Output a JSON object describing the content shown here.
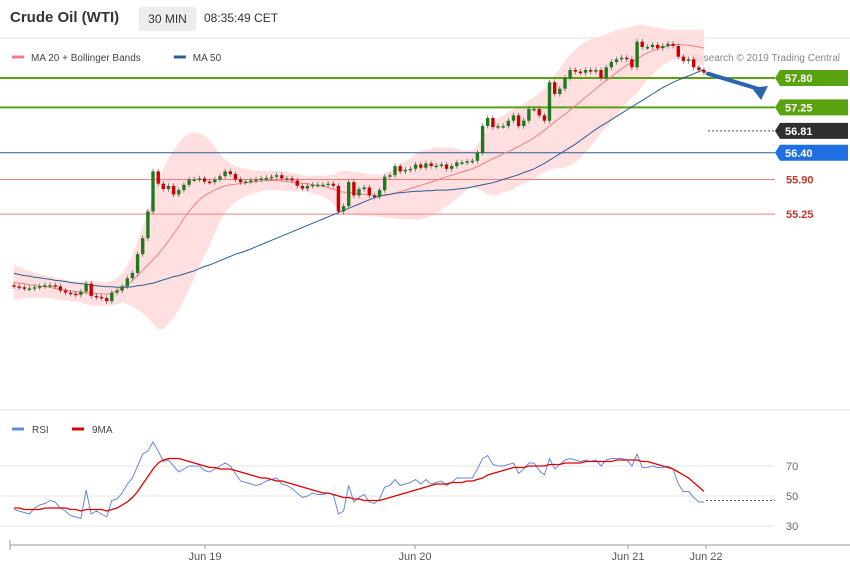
{
  "header": {
    "title": "Crude Oil (WTI)",
    "timeframe": "30 MIN",
    "time": "08:35:49 CET"
  },
  "credit": "Research © 2019 Trading Central",
  "colors": {
    "up": "#1f7a1f",
    "down": "#cc0000",
    "band_fill": "#ffd9d9",
    "ma20": "#f08080",
    "ma50": "#2b5d95",
    "resistance": "#59a210",
    "pivot": "#2f2f2f",
    "support_blue": "#1e6fe0",
    "support_red": "#f08080",
    "rsi": "#6688dd",
    "rsi_ma": "#dd0000",
    "arrow": "#2a64b0"
  },
  "chart_data": [
    {
      "type": "candlestick",
      "legend": [
        {
          "label": "MA 20 + Bollinger Bands",
          "color": "#f08080"
        },
        {
          "label": "MA 50",
          "color": "#2b5d95"
        }
      ],
      "x_labels": [
        "Jun 19",
        "Jun 20",
        "Jun 21",
        "Jun 22"
      ],
      "y_labels": [
        {
          "value": 57.8,
          "label": "57.80",
          "style": "green-tag"
        },
        {
          "value": 57.25,
          "label": "57.25",
          "style": "green-tag"
        },
        {
          "value": 56.81,
          "label": "56.81",
          "style": "dark-tag"
        },
        {
          "value": 56.4,
          "label": "56.40",
          "style": "blue-tag"
        },
        {
          "value": 55.9,
          "label": "55.90",
          "style": "red-text"
        },
        {
          "value": 55.25,
          "label": "55.25",
          "style": "red-text"
        }
      ],
      "levels": [
        {
          "value": 57.8,
          "kind": "resistance"
        },
        {
          "value": 57.25,
          "kind": "resistance"
        },
        {
          "value": 56.4,
          "kind": "pivot"
        },
        {
          "value": 55.9,
          "kind": "support"
        },
        {
          "value": 55.25,
          "kind": "support"
        }
      ],
      "current_price": 56.81,
      "closes": [
        53.9,
        53.88,
        53.86,
        53.86,
        53.88,
        53.9,
        53.92,
        53.92,
        53.9,
        53.82,
        53.78,
        53.76,
        53.74,
        53.8,
        53.95,
        53.72,
        53.7,
        53.68,
        53.62,
        53.78,
        53.82,
        53.9,
        54.05,
        54.15,
        54.5,
        54.8,
        55.3,
        56.05,
        55.82,
        55.72,
        55.78,
        55.62,
        55.7,
        55.8,
        55.9,
        55.9,
        55.92,
        55.86,
        55.85,
        55.9,
        55.96,
        56.05,
        56.0,
        55.9,
        55.85,
        55.86,
        55.88,
        55.9,
        55.92,
        55.93,
        55.95,
        55.98,
        55.92,
        55.92,
        55.88,
        55.78,
        55.73,
        55.78,
        55.8,
        55.8,
        55.8,
        55.82,
        55.78,
        55.3,
        55.4,
        55.85,
        55.6,
        55.72,
        55.75,
        55.6,
        55.58,
        55.7,
        55.95,
        55.98,
        56.15,
        56.05,
        56.08,
        56.1,
        56.18,
        56.12,
        56.2,
        56.15,
        56.16,
        56.18,
        56.1,
        56.15,
        56.22,
        56.22,
        56.24,
        56.25,
        56.4,
        56.9,
        57.05,
        56.88,
        56.9,
        56.9,
        57.0,
        57.1,
        56.9,
        57.0,
        57.22,
        57.22,
        57.1,
        57.0,
        57.72,
        57.5,
        57.6,
        57.8,
        57.95,
        57.92,
        57.9,
        57.95,
        57.92,
        57.95,
        57.8,
        58.0,
        58.1,
        58.15,
        58.18,
        58.15,
        58.0,
        58.48,
        58.38,
        58.38,
        58.42,
        58.36,
        58.4,
        58.44,
        58.4,
        58.2,
        58.12,
        58.15,
        58.0,
        57.95,
        57.9
      ],
      "ma20": [
        53.97,
        53.96,
        53.95,
        53.93,
        53.92,
        53.9,
        53.89,
        53.88,
        53.86,
        53.84,
        53.83,
        53.81,
        53.8,
        53.79,
        53.78,
        53.77,
        53.76,
        53.76,
        53.75,
        53.77,
        53.81,
        53.87,
        53.93,
        54.01,
        54.1,
        54.2,
        54.3,
        54.4,
        54.5,
        54.62,
        54.75,
        54.88,
        55.02,
        55.17,
        55.3,
        55.42,
        55.52,
        55.6,
        55.65,
        55.7,
        55.75,
        55.78,
        55.8,
        55.81,
        55.83,
        55.84,
        55.85,
        55.86,
        55.87,
        55.88,
        55.88,
        55.88,
        55.87,
        55.86,
        55.85,
        55.84,
        55.83,
        55.82,
        55.8,
        55.79,
        55.78,
        55.75,
        55.72,
        55.68,
        55.66,
        55.66,
        55.64,
        55.63,
        55.62,
        55.61,
        55.6,
        55.6,
        55.6,
        55.62,
        55.64,
        55.67,
        55.7,
        55.73,
        55.76,
        55.79,
        55.82,
        55.85,
        55.88,
        55.92,
        55.95,
        55.98,
        56.01,
        56.04,
        56.07,
        56.1,
        56.14,
        56.19,
        56.24,
        56.29,
        56.33,
        56.38,
        56.42,
        56.47,
        56.52,
        56.57,
        56.62,
        56.68,
        56.75,
        56.82,
        56.9,
        56.98,
        57.05,
        57.12,
        57.2,
        57.28,
        57.36,
        57.44,
        57.52,
        57.6,
        57.68,
        57.75,
        57.82,
        57.9,
        57.97,
        58.04,
        58.1,
        58.16,
        58.22,
        58.27,
        58.31,
        58.35,
        58.38,
        58.4,
        58.42,
        58.43,
        58.42,
        58.41,
        58.4,
        58.38,
        58.36
      ],
      "bb_upper": [
        54.3,
        54.26,
        54.22,
        54.18,
        54.15,
        54.12,
        54.1,
        54.08,
        54.06,
        54.04,
        54.02,
        54.0,
        53.99,
        53.98,
        54.0,
        54.0,
        53.99,
        53.98,
        53.97,
        54.0,
        54.06,
        54.14,
        54.3,
        54.48,
        54.75,
        55.0,
        55.3,
        55.6,
        55.9,
        56.1,
        56.3,
        56.45,
        56.58,
        56.7,
        56.76,
        56.78,
        56.76,
        56.72,
        56.64,
        56.5,
        56.38,
        56.28,
        56.2,
        56.15,
        56.12,
        56.1,
        56.08,
        56.07,
        56.06,
        56.06,
        56.06,
        56.06,
        56.05,
        56.04,
        56.02,
        56.0,
        55.98,
        55.97,
        55.97,
        55.97,
        55.97,
        55.98,
        55.99,
        56.04,
        56.06,
        56.06,
        56.04,
        56.03,
        56.02,
        56.0,
        55.99,
        55.99,
        56.02,
        56.05,
        56.12,
        56.18,
        56.24,
        56.3,
        56.38,
        56.43,
        56.46,
        56.48,
        56.5,
        56.5,
        56.5,
        56.5,
        56.48,
        56.45,
        56.43,
        56.45,
        56.55,
        56.7,
        56.86,
        56.98,
        57.05,
        57.1,
        57.16,
        57.22,
        57.26,
        57.32,
        57.38,
        57.44,
        57.52,
        57.6,
        57.72,
        57.85,
        57.98,
        58.12,
        58.24,
        58.34,
        58.42,
        58.48,
        58.52,
        58.56,
        58.58,
        58.62,
        58.66,
        58.7,
        58.72,
        58.74,
        58.76,
        58.8,
        58.8,
        58.78,
        58.76,
        58.74,
        58.72,
        58.71,
        58.7,
        58.7,
        58.7,
        58.7,
        58.7,
        58.7,
        58.71
      ],
      "bb_lower": [
        53.65,
        53.66,
        53.68,
        53.68,
        53.69,
        53.68,
        53.68,
        53.68,
        53.66,
        53.64,
        53.64,
        53.62,
        53.61,
        53.6,
        53.56,
        53.54,
        53.53,
        53.54,
        53.53,
        53.54,
        53.56,
        53.6,
        53.56,
        53.54,
        53.45,
        53.4,
        53.3,
        53.2,
        53.1,
        53.1,
        53.2,
        53.3,
        53.46,
        53.64,
        53.84,
        54.06,
        54.28,
        54.48,
        54.66,
        54.9,
        55.12,
        55.28,
        55.4,
        55.47,
        55.54,
        55.58,
        55.62,
        55.65,
        55.68,
        55.7,
        55.7,
        55.7,
        55.69,
        55.68,
        55.68,
        55.68,
        55.68,
        55.67,
        55.63,
        55.61,
        55.59,
        55.52,
        55.45,
        55.32,
        55.26,
        55.26,
        55.24,
        55.23,
        55.22,
        55.22,
        55.21,
        55.21,
        55.18,
        55.19,
        55.16,
        55.16,
        55.16,
        55.16,
        55.14,
        55.15,
        55.18,
        55.22,
        55.26,
        55.34,
        55.4,
        55.46,
        55.54,
        55.63,
        55.71,
        55.75,
        55.73,
        55.68,
        55.62,
        55.6,
        55.61,
        55.66,
        55.68,
        55.72,
        55.78,
        55.82,
        55.86,
        55.92,
        55.98,
        56.04,
        56.08,
        56.11,
        56.12,
        56.12,
        56.16,
        56.22,
        56.3,
        56.4,
        56.52,
        56.64,
        56.78,
        56.88,
        56.98,
        57.1,
        57.22,
        57.34,
        57.44,
        57.52,
        57.64,
        57.76,
        57.86,
        57.96,
        58.04,
        58.09,
        58.14,
        58.16,
        58.14,
        58.12,
        58.1,
        58.06,
        58.01
      ],
      "ma50": [
        54.14,
        54.12,
        54.1,
        54.09,
        54.07,
        54.06,
        54.04,
        54.03,
        54.01,
        54.0,
        53.99,
        53.97,
        53.96,
        53.95,
        53.94,
        53.92,
        53.91,
        53.9,
        53.89,
        53.89,
        53.88,
        53.88,
        53.88,
        53.89,
        53.91,
        53.92,
        53.94,
        53.96,
        53.99,
        54.02,
        54.05,
        54.08,
        54.1,
        54.13,
        54.16,
        54.19,
        54.23,
        54.27,
        54.3,
        54.34,
        54.38,
        54.42,
        54.46,
        54.5,
        54.53,
        54.56,
        54.6,
        54.64,
        54.68,
        54.72,
        54.76,
        54.8,
        54.84,
        54.88,
        54.92,
        54.96,
        55.0,
        55.04,
        55.08,
        55.12,
        55.16,
        55.2,
        55.24,
        55.28,
        55.32,
        55.36,
        55.4,
        55.44,
        55.48,
        55.52,
        55.56,
        55.58,
        55.61,
        55.62,
        55.64,
        55.65,
        55.66,
        55.67,
        55.68,
        55.68,
        55.69,
        55.69,
        55.7,
        55.7,
        55.7,
        55.71,
        55.72,
        55.73,
        55.74,
        55.76,
        55.78,
        55.8,
        55.82,
        55.84,
        55.87,
        55.9,
        55.93,
        55.96,
        55.99,
        56.03,
        56.06,
        56.1,
        56.15,
        56.2,
        56.26,
        56.32,
        56.38,
        56.44,
        56.5,
        56.56,
        56.63,
        56.7,
        56.77,
        56.84,
        56.9,
        56.96,
        57.02,
        57.08,
        57.14,
        57.2,
        57.26,
        57.32,
        57.38,
        57.44,
        57.5,
        57.56,
        57.62,
        57.67,
        57.72,
        57.76,
        57.8,
        57.84,
        57.88,
        57.92,
        57.96
      ]
    },
    {
      "type": "line",
      "legend": [
        {
          "label": "RSI",
          "color": "#6688dd"
        },
        {
          "label": "9MA",
          "color": "#dd0000"
        }
      ],
      "y_ticks": [
        30,
        50,
        70
      ],
      "ylim": [
        20,
        90
      ],
      "reference_level": 47,
      "rsi": [
        41,
        40,
        39,
        38,
        42,
        44,
        45,
        47,
        46,
        42,
        40,
        37,
        36,
        35,
        54,
        38,
        40,
        38,
        36,
        47,
        48,
        52,
        58,
        62,
        70,
        78,
        80,
        86,
        80,
        73,
        74,
        70,
        66,
        68,
        70,
        70,
        70,
        67,
        66,
        68,
        70,
        72,
        70,
        65,
        60,
        59,
        58,
        57,
        58,
        60,
        61,
        62,
        58,
        57,
        55,
        52,
        49,
        50,
        52,
        51,
        51,
        52,
        51,
        38,
        40,
        57,
        46,
        49,
        51,
        46,
        45,
        48,
        56,
        57,
        61,
        57,
        58,
        59,
        61,
        58,
        61,
        58,
        59,
        60,
        57,
        59,
        62,
        62,
        62,
        62,
        68,
        75,
        77,
        71,
        70,
        70,
        71,
        72,
        65,
        68,
        72,
        72,
        67,
        64,
        75,
        68,
        71,
        74,
        75,
        74,
        73,
        74,
        73,
        74,
        70,
        74,
        75,
        75,
        75,
        74,
        70,
        78,
        69,
        69,
        70,
        69,
        69,
        70,
        68,
        58,
        53,
        53,
        49,
        46,
        46
      ],
      "ma9": [
        42,
        42,
        41,
        41,
        41,
        41,
        42,
        42,
        42,
        42,
        42,
        41,
        41,
        40,
        41,
        41,
        41,
        41,
        40,
        41,
        42,
        44,
        46,
        49,
        53,
        58,
        63,
        68,
        72,
        74,
        75,
        75,
        75,
        74,
        73,
        72,
        71,
        70,
        69,
        69,
        68,
        68,
        68,
        67,
        66,
        65,
        64,
        63,
        62,
        62,
        61,
        60,
        60,
        59,
        58,
        57,
        56,
        55,
        54,
        53,
        52,
        52,
        51,
        50,
        49,
        49,
        48,
        48,
        47,
        47,
        47,
        47,
        48,
        49,
        50,
        51,
        52,
        53,
        54,
        55,
        56,
        57,
        58,
        58,
        58,
        59,
        59,
        59,
        60,
        60,
        61,
        62,
        64,
        65,
        66,
        67,
        68,
        69,
        69,
        69,
        70,
        70,
        70,
        70,
        71,
        71,
        71,
        72,
        72,
        72,
        72,
        73,
        73,
        73,
        73,
        73,
        73,
        74,
        74,
        74,
        74,
        74,
        73,
        73,
        72,
        71,
        70,
        69,
        68,
        66,
        64,
        62,
        59,
        56,
        53
      ]
    }
  ]
}
